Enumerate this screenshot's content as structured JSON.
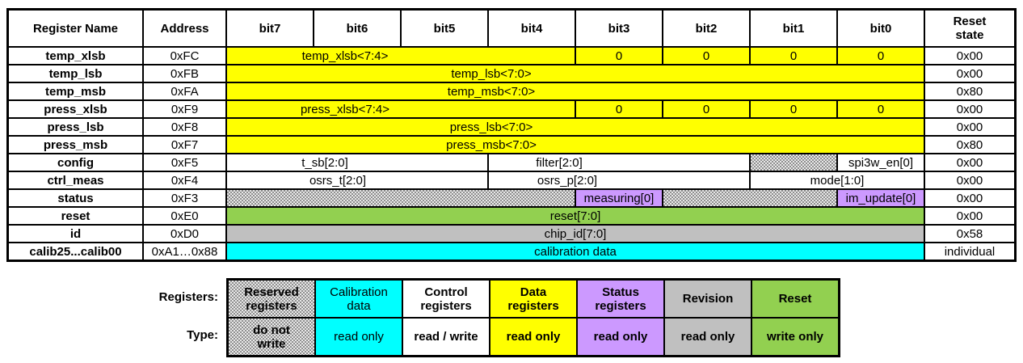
{
  "colors": {
    "data_yellow": "#FFFF00",
    "calibration_cyan": "#00FFFF",
    "status_purple": "#CC99FF",
    "revision_gray": "#C0C0C0",
    "reset_green": "#92D050",
    "control_white": "#FFFFFF",
    "border_black": "#000000"
  },
  "register_table": {
    "header": {
      "register_name": "Register Name",
      "address": "Address",
      "bits": [
        "bit7",
        "bit6",
        "bit5",
        "bit4",
        "bit3",
        "bit2",
        "bit1",
        "bit0"
      ],
      "reset_state": "Reset\nstate"
    },
    "rows": [
      {
        "name": "temp_xlsb",
        "address": "0xFC",
        "reset": "0x00",
        "fields": [
          {
            "label": "temp_xlsb<7:4>",
            "bits": "7:4",
            "category": "data"
          },
          {
            "label": "0",
            "bits": "3",
            "category": "data"
          },
          {
            "label": "0",
            "bits": "2",
            "category": "data"
          },
          {
            "label": "0",
            "bits": "1",
            "category": "data"
          },
          {
            "label": "0",
            "bits": "0",
            "category": "data"
          }
        ]
      },
      {
        "name": "temp_lsb",
        "address": "0xFB",
        "reset": "0x00",
        "fields": [
          {
            "label": "temp_lsb<7:0>",
            "bits": "7:0",
            "category": "data"
          }
        ]
      },
      {
        "name": "temp_msb",
        "address": "0xFA",
        "reset": "0x80",
        "fields": [
          {
            "label": "temp_msb<7:0>",
            "bits": "7:0",
            "category": "data"
          }
        ]
      },
      {
        "name": "press_xlsb",
        "address": "0xF9",
        "reset": "0x00",
        "fields": [
          {
            "label": "press_xlsb<7:4>",
            "bits": "7:4",
            "category": "data"
          },
          {
            "label": "0",
            "bits": "3",
            "category": "data"
          },
          {
            "label": "0",
            "bits": "2",
            "category": "data"
          },
          {
            "label": "0",
            "bits": "1",
            "category": "data"
          },
          {
            "label": "0",
            "bits": "0",
            "category": "data"
          }
        ]
      },
      {
        "name": "press_lsb",
        "address": "0xF8",
        "reset": "0x00",
        "fields": [
          {
            "label": "press_lsb<7:0>",
            "bits": "7:0",
            "category": "data"
          }
        ]
      },
      {
        "name": "press_msb",
        "address": "0xF7",
        "reset": "0x80",
        "fields": [
          {
            "label": "press_msb<7:0>",
            "bits": "7:0",
            "category": "data"
          }
        ]
      },
      {
        "name": "config",
        "address": "0xF5",
        "reset": "0x00",
        "fields": [
          {
            "label": "t_sb[2:0]",
            "bits": "7:5",
            "category": "control"
          },
          {
            "label": "filter[2:0]",
            "bits": "4:2",
            "category": "control"
          },
          {
            "label": "",
            "bits": "1",
            "category": "reserved"
          },
          {
            "label": "spi3w_en[0]",
            "bits": "0",
            "category": "control"
          }
        ]
      },
      {
        "name": "ctrl_meas",
        "address": "0xF4",
        "reset": "0x00",
        "fields": [
          {
            "label": "osrs_t[2:0]",
            "bits": "7:5",
            "category": "control"
          },
          {
            "label": "osrs_p[2:0]",
            "bits": "4:2",
            "category": "control"
          },
          {
            "label": "mode[1:0]",
            "bits": "1:0",
            "category": "control"
          }
        ]
      },
      {
        "name": "status",
        "address": "0xF3",
        "reset": "0x00",
        "fields": [
          {
            "label": "",
            "bits": "7:4",
            "category": "reserved"
          },
          {
            "label": "measuring[0]",
            "bits": "3",
            "category": "status"
          },
          {
            "label": "",
            "bits": "2:1",
            "category": "reserved"
          },
          {
            "label": "im_update[0]",
            "bits": "0",
            "category": "status"
          }
        ]
      },
      {
        "name": "reset",
        "address": "0xE0",
        "reset": "0x00",
        "fields": [
          {
            "label": "reset[7:0]",
            "bits": "7:0",
            "category": "reset"
          }
        ]
      },
      {
        "name": "id",
        "address": "0xD0",
        "reset": "0x58",
        "fields": [
          {
            "label": "chip_id[7:0]",
            "bits": "7:0",
            "category": "revision"
          }
        ]
      },
      {
        "name": "calib25...calib00",
        "address": "0xA1…0x88",
        "reset": "individual",
        "fields": [
          {
            "label": "calibration data",
            "bits": "7:0",
            "category": "calibration"
          }
        ]
      }
    ]
  },
  "legend": {
    "registers_label": "Registers:",
    "type_label": "Type:",
    "entries": [
      {
        "register": "Reserved\nregisters",
        "type": "do not\nwrite",
        "category": "reserved"
      },
      {
        "register": "Calibration\ndata",
        "type": "read only",
        "category": "calibration"
      },
      {
        "register": "Control\nregisters",
        "type": "read / write",
        "category": "control"
      },
      {
        "register": "Data\nregisters",
        "type": "read only",
        "category": "data"
      },
      {
        "register": "Status\nregisters",
        "type": "read only",
        "category": "status"
      },
      {
        "register": "Revision",
        "type": "read only",
        "category": "revision"
      },
      {
        "register": "Reset",
        "type": "write only",
        "category": "reset"
      }
    ]
  }
}
